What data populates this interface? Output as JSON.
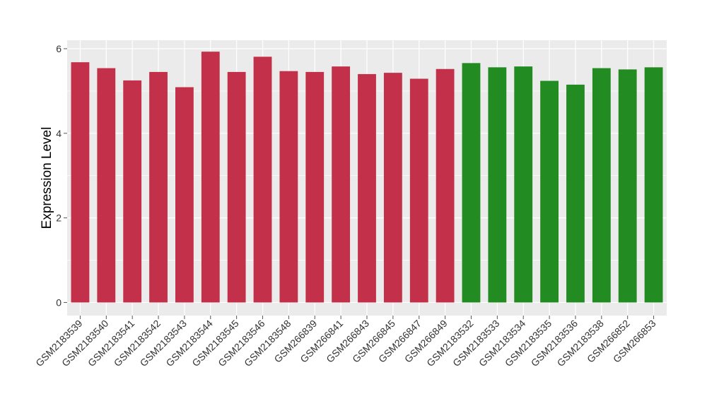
{
  "chart_data": {
    "type": "bar",
    "title": "",
    "xlabel": "",
    "ylabel": "Expression Level",
    "ylim": [
      0,
      6.2
    ],
    "yticks": [
      0,
      2,
      4,
      6
    ],
    "grid": true,
    "legend": "none",
    "categories": [
      "GSM2183539",
      "GSM2183540",
      "GSM2183541",
      "GSM2183542",
      "GSM2183543",
      "GSM2183544",
      "GSM2183545",
      "GSM2183546",
      "GSM2183548",
      "GSM266839",
      "GSM266841",
      "GSM266843",
      "GSM266845",
      "GSM266847",
      "GSM266849",
      "GSM2183532",
      "GSM2183533",
      "GSM2183534",
      "GSM2183535",
      "GSM2183536",
      "GSM2183538",
      "GSM266852",
      "GSM266853"
    ],
    "values": [
      5.68,
      5.54,
      5.25,
      5.45,
      5.09,
      5.93,
      5.45,
      5.81,
      5.47,
      5.45,
      5.58,
      5.4,
      5.43,
      5.29,
      5.52,
      5.66,
      5.56,
      5.58,
      5.24,
      5.15,
      5.54,
      5.51,
      5.56
    ],
    "groups": [
      "red",
      "red",
      "red",
      "red",
      "red",
      "red",
      "red",
      "red",
      "red",
      "red",
      "red",
      "red",
      "red",
      "red",
      "red",
      "green",
      "green",
      "green",
      "green",
      "green",
      "green",
      "green",
      "green"
    ],
    "colors": {
      "red": "#C3304A",
      "green": "#228B22",
      "panel": "#EBEBEB",
      "grid": "#FFFFFF",
      "axis_text": "#333333",
      "tick": "#555555"
    }
  }
}
